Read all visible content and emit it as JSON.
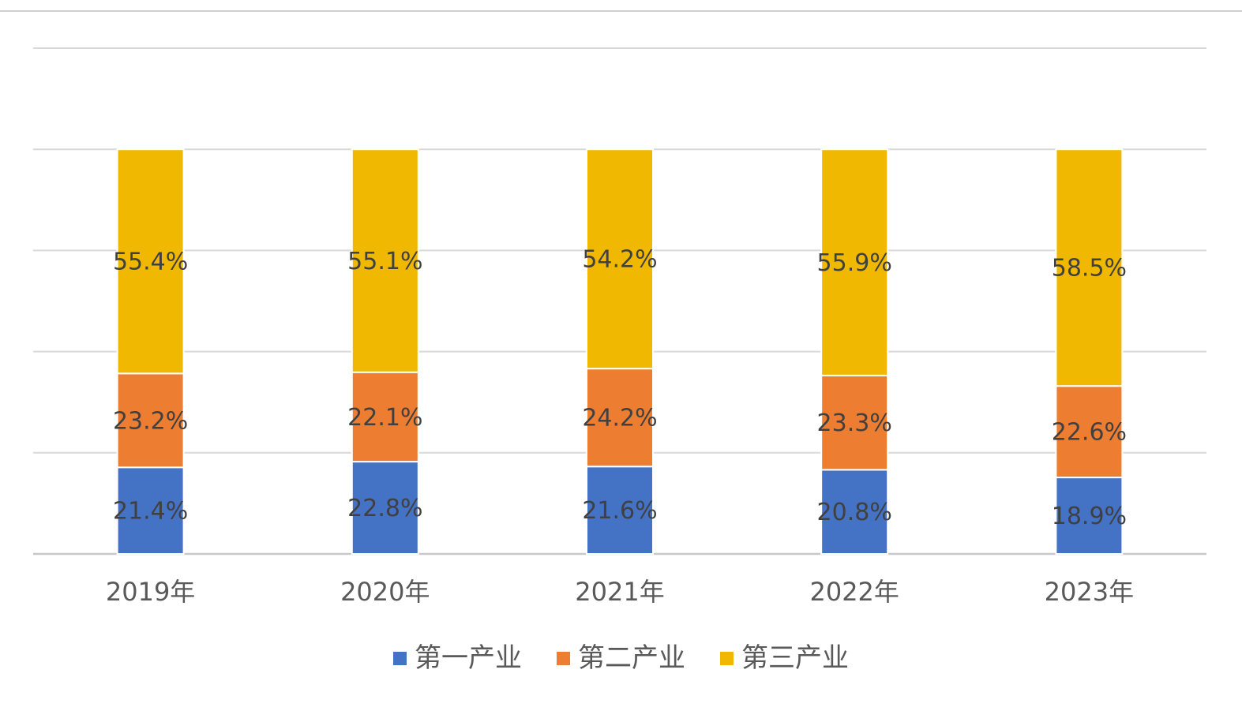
{
  "chart_data": {
    "type": "bar",
    "stacked": true,
    "percent_stacked": true,
    "categories": [
      "2019年",
      "2020年",
      "2021年",
      "2022年",
      "2023年"
    ],
    "series": [
      {
        "name": "第一产业",
        "color": "#4472c4",
        "values": [
          21.4,
          22.8,
          21.6,
          20.8,
          18.9
        ],
        "labels": [
          "21.4%",
          "22.8%",
          "21.6%",
          "20.8%",
          "18.9%"
        ]
      },
      {
        "name": "第二产业",
        "color": "#ed7d31",
        "values": [
          23.2,
          22.1,
          24.2,
          23.3,
          22.6
        ],
        "labels": [
          "23.2%",
          "22.1%",
          "24.2%",
          "23.3%",
          "22.6%"
        ]
      },
      {
        "name": "第三产业",
        "color": "#f0b800",
        "values": [
          55.4,
          55.1,
          54.2,
          55.9,
          58.5
        ],
        "labels": [
          "55.4%",
          "55.1%",
          "54.2%",
          "55.9%",
          "58.5%"
        ]
      }
    ],
    "ylim": [
      0,
      125
    ],
    "y_gridline_step": 25,
    "y_axis_labels_visible": false,
    "grid": true,
    "legend_position": "bottom"
  }
}
